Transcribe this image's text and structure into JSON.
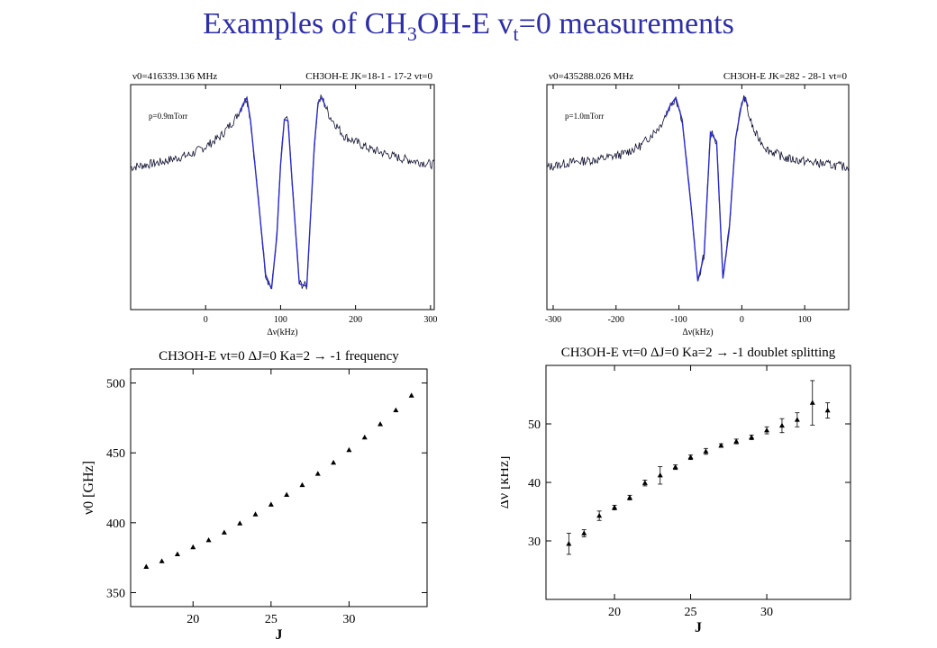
{
  "slide": {
    "title_main": "Examples of CH",
    "title_sub3": "3",
    "title_mid": "OH-E v",
    "title_subt": "t",
    "title_end": "=0 measurements",
    "title_color": "#2e2ea8"
  },
  "chart_data": [
    {
      "type": "line",
      "header_left": "ν0=416339.136 MHz",
      "header_right": "CH3OH-E JK=18-1 - 17-2 vt=0",
      "annotation": "p=0.9mTorr",
      "xlabel": "Δν(kHz)",
      "ylabel": "",
      "xlim": [
        -100,
        305
      ],
      "ylim": [
        -1.12,
        0.62
      ],
      "xticks": [
        0,
        100,
        200,
        300
      ],
      "grid": false,
      "series": [
        {
          "style": "noisy-trace",
          "x": [
            -100,
            -60,
            -20,
            0,
            20,
            40,
            50,
            55,
            60,
            70,
            80,
            88,
            95,
            100,
            105,
            110,
            115,
            125,
            135,
            145,
            150,
            155,
            165,
            185,
            220,
            260,
            305
          ],
          "y": [
            -0.02,
            0.02,
            0.08,
            0.14,
            0.22,
            0.36,
            0.47,
            0.52,
            0.34,
            -0.25,
            -0.85,
            -0.96,
            -0.55,
            0.0,
            0.35,
            0.34,
            -0.1,
            -0.92,
            -0.94,
            0.15,
            0.48,
            0.52,
            0.38,
            0.22,
            0.12,
            0.05,
            0.0
          ]
        },
        {
          "style": "fit",
          "x": [
            45,
            50,
            55,
            60,
            70,
            80,
            88,
            95,
            100,
            105,
            110,
            115,
            125,
            135,
            145,
            150,
            155,
            160
          ],
          "y": [
            0.4,
            0.47,
            0.52,
            0.34,
            -0.25,
            -0.85,
            -0.96,
            -0.55,
            0.0,
            0.35,
            0.34,
            -0.1,
            -0.92,
            -0.94,
            0.15,
            0.48,
            0.52,
            0.45
          ]
        }
      ]
    },
    {
      "type": "line",
      "header_left": "ν0=435288.026 MHz",
      "header_right": "CH3OH-E JK=282 - 28-1 vt=0",
      "annotation": "p=1.0mTorr",
      "xlabel": "Δν(kHz)",
      "ylabel": "",
      "xlim": [
        -310,
        170
      ],
      "ylim": [
        -1.12,
        0.62
      ],
      "xticks": [
        -300,
        -200,
        -100,
        0,
        100
      ],
      "grid": false,
      "series": [
        {
          "style": "noisy-trace",
          "x": [
            -310,
            -270,
            -230,
            -190,
            -160,
            -130,
            -115,
            -105,
            -95,
            -80,
            -70,
            -60,
            -50,
            -40,
            -30,
            -20,
            -10,
            0,
            5,
            10,
            20,
            40,
            70,
            110,
            170
          ],
          "y": [
            -0.02,
            0.02,
            0.04,
            0.08,
            0.15,
            0.3,
            0.45,
            0.52,
            0.35,
            -0.35,
            -0.9,
            -0.7,
            0.25,
            0.18,
            -0.88,
            -0.5,
            0.2,
            0.48,
            0.52,
            0.4,
            0.25,
            0.12,
            0.05,
            0.02,
            -0.02
          ]
        },
        {
          "style": "fit",
          "x": [
            -120,
            -115,
            -105,
            -95,
            -80,
            -70,
            -60,
            -50,
            -40,
            -30,
            -20,
            -10,
            0,
            5,
            10
          ],
          "y": [
            0.38,
            0.45,
            0.52,
            0.35,
            -0.35,
            -0.9,
            -0.7,
            0.25,
            0.18,
            -0.88,
            -0.5,
            0.2,
            0.48,
            0.52,
            0.45
          ]
        }
      ]
    },
    {
      "type": "scatter",
      "title": "CH3OH-E vt=0  ΔJ=0  Ka=2 → -1 frequency",
      "xlabel": "J",
      "ylabel": "ν0 [GHz]",
      "xlim": [
        16,
        35
      ],
      "ylim": [
        340,
        510
      ],
      "xticks": [
        20,
        25,
        30
      ],
      "yticks": [
        350,
        400,
        450,
        500
      ],
      "grid": false,
      "x": [
        17,
        18,
        19,
        20,
        21,
        22,
        23,
        24,
        25,
        26,
        27,
        28,
        29,
        30,
        31,
        32,
        33,
        34
      ],
      "y": [
        368.5,
        372.5,
        377.5,
        382.5,
        387.5,
        393,
        399.5,
        406,
        413,
        420,
        427,
        435,
        443,
        452,
        461,
        470.5,
        480.5,
        491
      ]
    },
    {
      "type": "scatter",
      "title": "CH3OH-E vt=0  ΔJ=0  Ka=2 → -1 doublet splitting",
      "xlabel": "J",
      "ylabel": "Δν [kHz]",
      "xlim": [
        15.5,
        35.5
      ],
      "ylim": [
        20,
        60
      ],
      "xticks": [
        20,
        25,
        30
      ],
      "yticks": [
        30,
        40,
        50
      ],
      "grid": false,
      "x": [
        17,
        18,
        19,
        20,
        21,
        22,
        23,
        24,
        25,
        26,
        27,
        28,
        29,
        30,
        31,
        32,
        33,
        34
      ],
      "y": [
        29.5,
        31.3,
        34.3,
        35.7,
        37.4,
        39.9,
        41.2,
        42.6,
        44.3,
        45.3,
        46.3,
        47.0,
        47.7,
        48.9,
        49.7,
        50.7,
        53.6,
        52.3
      ],
      "err": [
        1.8,
        0.6,
        0.8,
        0.4,
        0.4,
        0.5,
        1.5,
        0.4,
        0.4,
        0.5,
        0.3,
        0.4,
        0.4,
        0.6,
        1.2,
        1.2,
        3.8,
        1.3
      ]
    }
  ]
}
